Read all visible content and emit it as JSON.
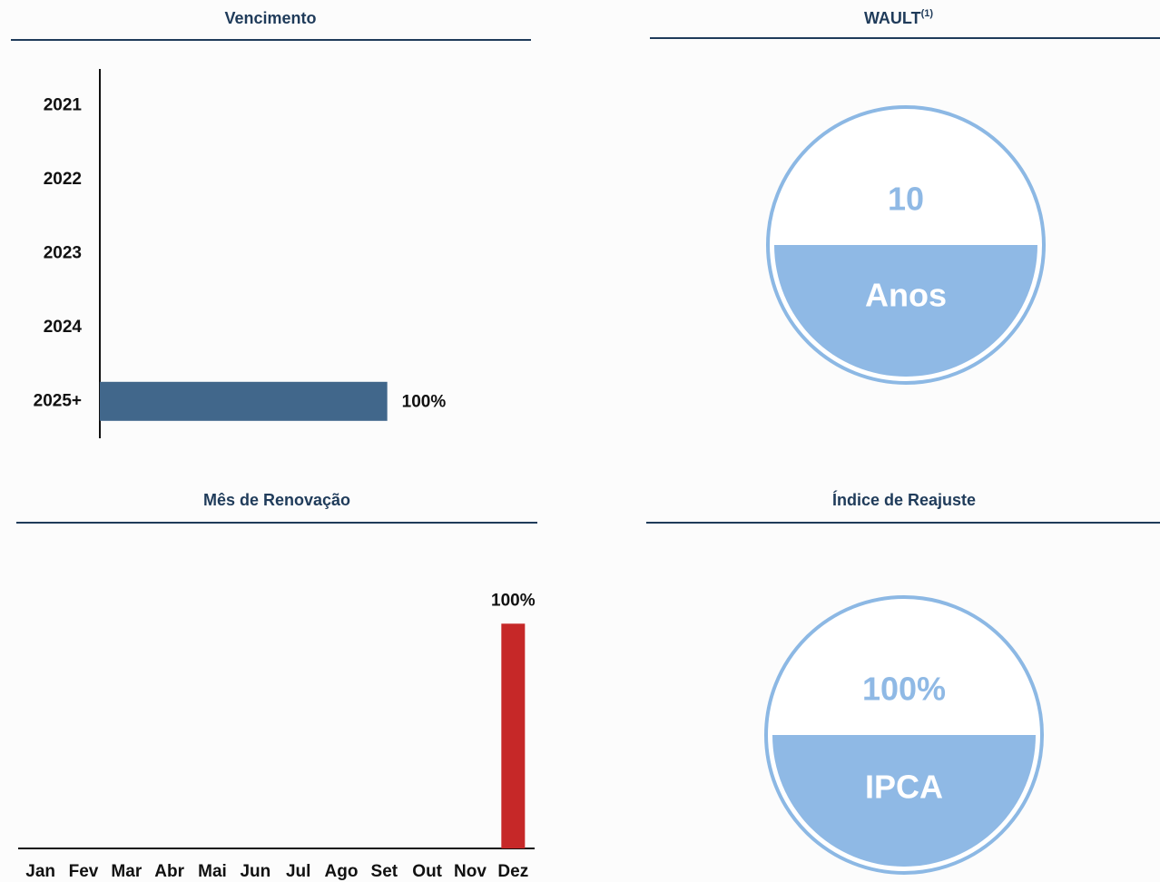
{
  "chart_data": [
    {
      "type": "bar",
      "orientation": "horizontal",
      "title": "Vencimento",
      "categories": [
        "2021",
        "2022",
        "2023",
        "2024",
        "2025+"
      ],
      "values": [
        0,
        0,
        0,
        0,
        100
      ],
      "value_labels": [
        null,
        null,
        null,
        null,
        "100%"
      ],
      "color": "#41678b",
      "xlim": [
        0,
        150
      ]
    },
    {
      "type": "bar",
      "orientation": "vertical",
      "title": "Mês de Renovação",
      "categories": [
        "Jan",
        "Fev",
        "Mar",
        "Abr",
        "Mai",
        "Jun",
        "Jul",
        "Ago",
        "Set",
        "Out",
        "Nov",
        "Dez"
      ],
      "values": [
        0,
        0,
        0,
        0,
        0,
        0,
        0,
        0,
        0,
        0,
        0,
        100
      ],
      "value_labels": [
        null,
        null,
        null,
        null,
        null,
        null,
        null,
        null,
        null,
        null,
        null,
        "100%"
      ],
      "color": "#c62828",
      "ylim": [
        0,
        130
      ]
    }
  ],
  "widgets": [
    {
      "title": "WAULT",
      "title_note": "(1)",
      "top": "10",
      "bottom": "Anos"
    },
    {
      "title": "Índice de Reajuste",
      "top": "100%",
      "bottom": "IPCA"
    }
  ]
}
